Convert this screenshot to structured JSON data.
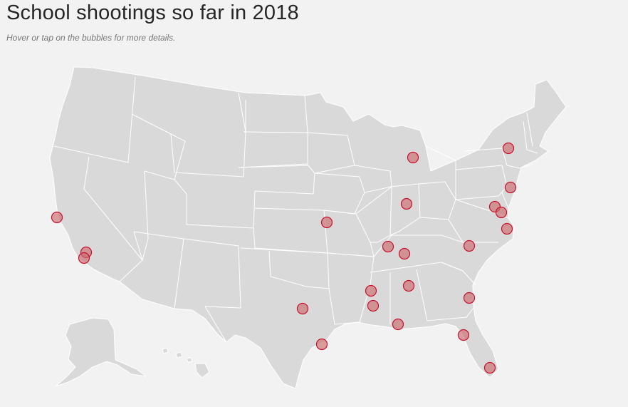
{
  "title": "School shootings so far in 2018",
  "subtitle": "Hover or tap on the bubbles for more details.",
  "colors": {
    "background": "#f2f2f2",
    "land": "#d9d9d9",
    "borders": "#ffffff",
    "bubble_fill": "#cd6b6e",
    "bubble_stroke": "#c8102e"
  },
  "incidents": [
    {
      "location": "Northern California"
    },
    {
      "location": "Southern California"
    },
    {
      "location": "Southern California"
    },
    {
      "location": "Texas"
    },
    {
      "location": "Texas Gulf Coast"
    },
    {
      "location": "Missouri"
    },
    {
      "location": "Michigan"
    },
    {
      "location": "Indiana"
    },
    {
      "location": "Kentucky"
    },
    {
      "location": "Tennessee"
    },
    {
      "location": "Mississippi"
    },
    {
      "location": "Mississippi"
    },
    {
      "location": "Alabama"
    },
    {
      "location": "Alabama Gulf Coast"
    },
    {
      "location": "Georgia Coast"
    },
    {
      "location": "Florida"
    },
    {
      "location": "South Florida"
    },
    {
      "location": "North Carolina"
    },
    {
      "location": "Virginia"
    },
    {
      "location": "Maryland"
    },
    {
      "location": "Maryland"
    },
    {
      "location": "New Jersey"
    },
    {
      "location": "New York"
    }
  ]
}
